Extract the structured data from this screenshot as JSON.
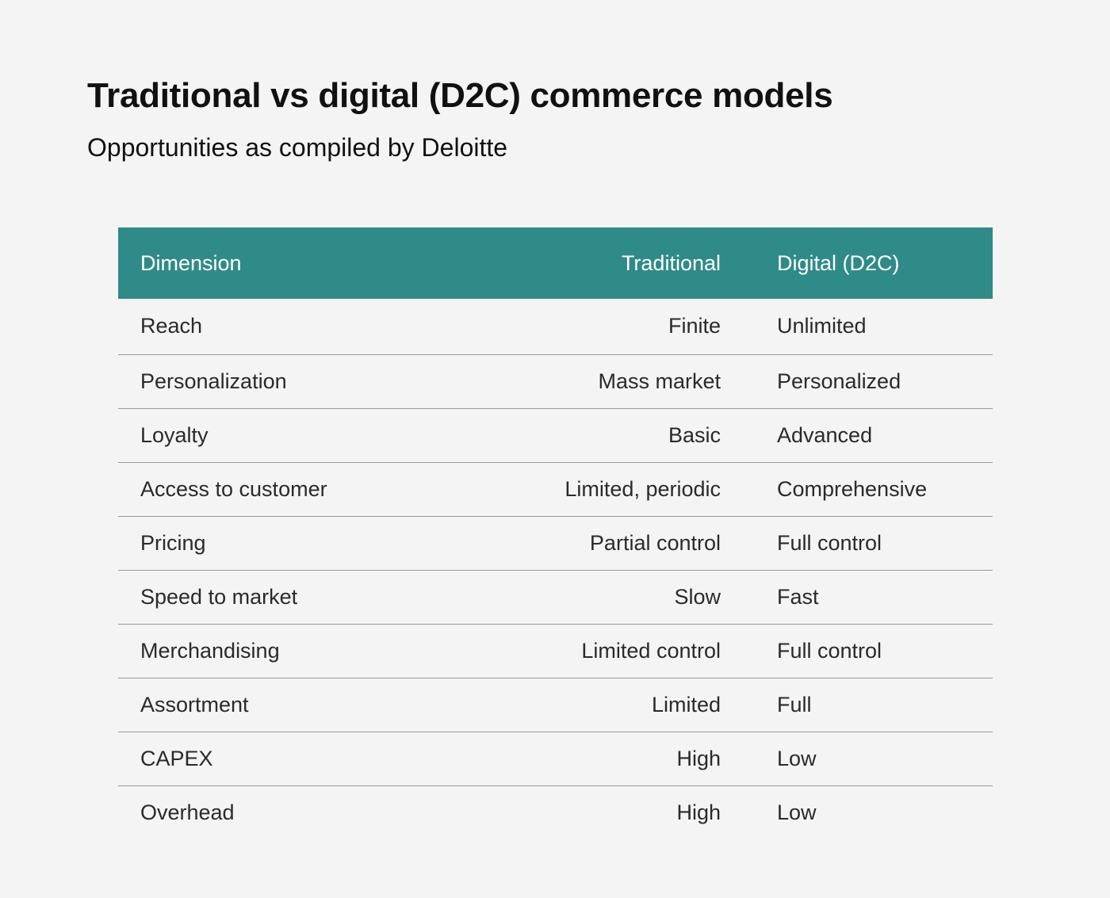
{
  "title": "Traditional vs digital (D2C) commerce models",
  "subtitle": "Opportunities as compiled by Deloitte",
  "colors": {
    "header_background": "#2f8b88",
    "page_background": "#f4f4f4",
    "row_divider": "#9a9a9a"
  },
  "chart_data": {
    "type": "table",
    "title": "Traditional vs digital (D2C) commerce models",
    "subtitle": "Opportunities as compiled by Deloitte",
    "columns": [
      "Dimension",
      "Traditional",
      "Digital (D2C)"
    ],
    "rows": [
      [
        "Reach",
        "Finite",
        "Unlimited"
      ],
      [
        "Personalization",
        "Mass market",
        "Personalized"
      ],
      [
        "Loyalty",
        "Basic",
        "Advanced"
      ],
      [
        "Access to customer",
        "Limited, periodic",
        "Comprehensive"
      ],
      [
        "Pricing",
        "Partial control",
        "Full control"
      ],
      [
        "Speed to market",
        "Slow",
        "Fast"
      ],
      [
        "Merchandising",
        "Limited control",
        "Full control"
      ],
      [
        "Assortment",
        "Limited",
        "Full"
      ],
      [
        "CAPEX",
        "High",
        "Low"
      ],
      [
        "Overhead",
        "High",
        "Low"
      ]
    ]
  }
}
